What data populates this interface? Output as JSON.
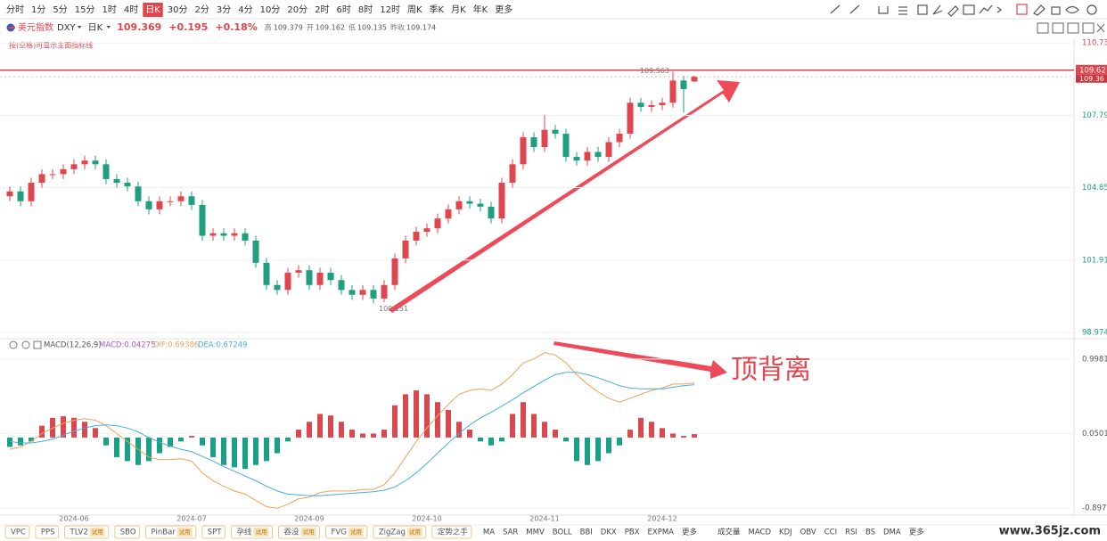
{
  "toolbar": {
    "periods": [
      "分时",
      "1分",
      "5分",
      "15分",
      "1时",
      "4时",
      "日K",
      "30分",
      "2分",
      "3分",
      "4分",
      "10分",
      "20分",
      "2时",
      "6时",
      "8时",
      "12时",
      "周K",
      "季K",
      "月K",
      "年K",
      "更多"
    ],
    "active": 6
  },
  "header": {
    "symbol": "美元指数",
    "code": "DXY",
    "period": "日K",
    "change": "+0.195",
    "change_pct": "+0.18%",
    "stat_labels": [
      "高",
      "开",
      "低",
      "昨收"
    ],
    "prev_close": 109.174,
    "hint": "按(空格)可显示主图指标线"
  },
  "chart_data": [
    {
      "type": "candlestick",
      "up_color": "#e0464d",
      "down_color": "#1f9f7d",
      "open": [
        104.5,
        104.7,
        104.3,
        105.05,
        105.4,
        105.4,
        105.6,
        105.8,
        105.95,
        105.8,
        105.2,
        105.05,
        104.9,
        104.3,
        103.97,
        104.3,
        104.3,
        104.5,
        104.15,
        102.9,
        103.0,
        102.9,
        103.0,
        102.7,
        101.8,
        100.9,
        100.7,
        101.4,
        101.5,
        100.9,
        101.4,
        101.1,
        100.7,
        100.5,
        100.7,
        100.35,
        100.9,
        101.98,
        102.7,
        103.06,
        103.2,
        103.6,
        103.97,
        104.3,
        104.2,
        104.08,
        103.6,
        105.05,
        105.8,
        106.9,
        106.5,
        107.2,
        107.04,
        106.1,
        105.95,
        106.3,
        106.1,
        106.7,
        107.04,
        108.3,
        108.13,
        108.2,
        108.3,
        109.2,
        109.162
      ],
      "high": [
        104.9,
        104.9,
        105.25,
        105.6,
        105.6,
        105.8,
        106.0,
        106.15,
        106.15,
        106.0,
        105.4,
        105.25,
        105.1,
        104.5,
        104.5,
        104.5,
        104.7,
        104.7,
        104.35,
        103.2,
        103.2,
        103.2,
        103.2,
        102.9,
        102.0,
        101.1,
        101.6,
        101.7,
        101.7,
        101.6,
        101.6,
        101.3,
        100.9,
        100.9,
        100.9,
        101.1,
        102.18,
        102.9,
        103.26,
        103.4,
        103.8,
        104.17,
        104.5,
        104.5,
        104.4,
        104.28,
        105.25,
        106.0,
        107.1,
        107.1,
        107.8,
        107.4,
        107.24,
        106.3,
        106.5,
        106.5,
        106.9,
        107.24,
        108.5,
        108.5,
        108.4,
        108.5,
        109.563,
        109.4,
        109.379
      ],
      "low": [
        104.3,
        104.1,
        104.1,
        104.85,
        105.2,
        105.2,
        105.4,
        105.6,
        105.6,
        105.0,
        104.85,
        104.7,
        104.1,
        103.77,
        103.77,
        104.1,
        104.1,
        103.95,
        102.7,
        102.7,
        102.7,
        102.7,
        102.5,
        101.6,
        100.7,
        100.5,
        100.5,
        101.2,
        100.7,
        100.7,
        100.9,
        100.5,
        100.3,
        100.3,
        100.151,
        100.2,
        100.7,
        101.78,
        102.5,
        102.86,
        103.0,
        103.4,
        103.77,
        104.0,
        103.88,
        103.4,
        103.4,
        104.85,
        105.6,
        106.3,
        106.3,
        106.84,
        105.9,
        105.75,
        105.75,
        105.9,
        105.9,
        106.5,
        106.84,
        107.93,
        107.93,
        108.0,
        108.1,
        107.9,
        109.135
      ],
      "close": [
        104.7,
        104.3,
        105.05,
        105.4,
        105.4,
        105.6,
        105.8,
        105.95,
        105.8,
        105.2,
        105.05,
        104.9,
        104.3,
        103.97,
        104.3,
        104.3,
        104.5,
        104.15,
        102.9,
        103.0,
        102.9,
        103.0,
        102.7,
        101.8,
        100.9,
        100.7,
        101.4,
        101.5,
        100.9,
        101.4,
        101.1,
        100.7,
        100.5,
        100.7,
        100.35,
        100.9,
        101.98,
        102.7,
        103.06,
        103.2,
        103.6,
        103.97,
        104.3,
        104.2,
        104.08,
        103.6,
        105.05,
        105.8,
        106.9,
        106.5,
        107.2,
        107.04,
        106.1,
        105.95,
        106.3,
        106.1,
        106.7,
        107.04,
        108.3,
        108.13,
        108.2,
        108.3,
        109.2,
        108.85,
        109.369
      ],
      "max_index": 62,
      "min_index": 34,
      "ylim": [
        98.72,
        110.95
      ],
      "yticks": [
        110.73,
        107.79,
        104.85,
        101.91,
        98.974
      ],
      "grid": true,
      "hline": {
        "value": 109.62,
        "color": "#e0464d"
      },
      "last_price": 109.36
    },
    {
      "type": "macd",
      "title": "MACD(12,26,9)",
      "legend_labels": [
        "MACD:0.04275",
        "DIF:0.69386",
        "DEA:0.67249"
      ],
      "categories": [
        null,
        null,
        null,
        null,
        null,
        null,
        "2024-06",
        null,
        null,
        null,
        null,
        null,
        null,
        null,
        null,
        null,
        null,
        "2024-07",
        null,
        null,
        null,
        null,
        null,
        null,
        null,
        null,
        null,
        null,
        "2024-09",
        null,
        null,
        null,
        null,
        null,
        null,
        null,
        null,
        null,
        null,
        "2024-10",
        null,
        null,
        null,
        null,
        null,
        null,
        null,
        null,
        null,
        null,
        "2024-11",
        null,
        null,
        null,
        null,
        null,
        null,
        null,
        null,
        null,
        null,
        "2024-12",
        null,
        null,
        null
      ],
      "series": [
        {
          "name": "MACD",
          "color": "#9b59c6",
          "up_color": "#d9474f",
          "down_color": "#1aa086",
          "values": [
            -0.12,
            -0.1,
            -0.05,
            0.15,
            0.25,
            0.27,
            0.25,
            0.2,
            0.12,
            -0.1,
            -0.25,
            -0.3,
            -0.35,
            -0.3,
            -0.2,
            -0.12,
            -0.05,
            0.02,
            -0.1,
            -0.25,
            -0.35,
            -0.38,
            -0.4,
            -0.35,
            -0.3,
            -0.2,
            -0.05,
            0.1,
            0.2,
            0.3,
            0.28,
            0.2,
            0.1,
            0.05,
            0.05,
            0.1,
            0.41,
            0.55,
            0.6,
            0.55,
            0.45,
            0.35,
            0.2,
            0.1,
            -0.05,
            -0.1,
            -0.05,
            0.3,
            0.45,
            0.3,
            0.2,
            0.1,
            -0.05,
            -0.3,
            -0.35,
            -0.3,
            -0.2,
            -0.1,
            0.1,
            0.25,
            0.2,
            0.12,
            0.05,
            0.02,
            0.04275
          ]
        },
        {
          "name": "DIF",
          "color": "#f0a25a",
          "values": [
            -0.15,
            -0.12,
            -0.05,
            0.05,
            0.12,
            0.18,
            0.22,
            0.24,
            0.22,
            0.15,
            0.05,
            -0.05,
            -0.15,
            -0.25,
            -0.28,
            -0.28,
            -0.27,
            -0.3,
            -0.45,
            -0.55,
            -0.62,
            -0.68,
            -0.72,
            -0.8,
            -0.88,
            -0.9,
            -0.85,
            -0.78,
            -0.76,
            -0.7,
            -0.68,
            -0.68,
            -0.68,
            -0.66,
            -0.66,
            -0.6,
            -0.45,
            -0.25,
            -0.05,
            0.12,
            0.28,
            0.42,
            0.55,
            0.6,
            0.62,
            0.6,
            0.68,
            0.8,
            0.95,
            1.0,
            1.08,
            1.05,
            0.95,
            0.8,
            0.68,
            0.58,
            0.5,
            0.45,
            0.5,
            0.55,
            0.6,
            0.63,
            0.68,
            0.68,
            0.69386
          ]
        },
        {
          "name": "DEA",
          "color": "#45aee0",
          "values": [
            -0.05,
            -0.07,
            -0.07,
            -0.05,
            -0.02,
            0.03,
            0.08,
            0.12,
            0.15,
            0.16,
            0.15,
            0.12,
            0.07,
            0.0,
            -0.06,
            -0.11,
            -0.15,
            -0.18,
            -0.24,
            -0.3,
            -0.37,
            -0.43,
            -0.49,
            -0.55,
            -0.62,
            -0.68,
            -0.72,
            -0.73,
            -0.74,
            -0.74,
            -0.73,
            -0.72,
            -0.71,
            -0.7,
            -0.69,
            -0.67,
            -0.63,
            -0.55,
            -0.45,
            -0.33,
            -0.2,
            -0.07,
            0.05,
            0.16,
            0.25,
            0.32,
            0.4,
            0.48,
            0.57,
            0.65,
            0.73,
            0.8,
            0.83,
            0.83,
            0.8,
            0.76,
            0.71,
            0.66,
            0.63,
            0.62,
            0.62,
            0.62,
            0.64,
            0.66,
            0.67249
          ]
        }
      ],
      "ylim": [
        -0.988,
        1.235
      ],
      "yticks": [
        0.9981,
        0.0501,
        -0.8977
      ],
      "grid": true
    }
  ],
  "annotation": "顶背离",
  "footer": {
    "indicators_main": [
      {
        "label": "VPC"
      },
      {
        "label": "PPS"
      },
      {
        "label": "TLV2",
        "badge": "试用"
      },
      {
        "label": "SBO"
      },
      {
        "label": "PinBar",
        "badge": "试用"
      },
      {
        "label": "SPT"
      },
      {
        "label": "孕线",
        "badge": "试用"
      },
      {
        "label": "吞没",
        "badge": "试用"
      },
      {
        "label": "FVG",
        "badge": "试用"
      },
      {
        "label": "ZigZag",
        "badge": "试用"
      },
      {
        "label": "定势之手"
      }
    ],
    "indicators_overlay": [
      "MA",
      "SAR",
      "MMV",
      "BOLL",
      "BBI",
      "DKX",
      "PBX",
      "EXPMA",
      "更多"
    ],
    "indicators_sub": [
      "成交量",
      "MACD",
      "KDJ",
      "OBV",
      "CCI",
      "RSI",
      "BS",
      "DMA",
      "更多"
    ]
  },
  "watermark": "www.365jz.com"
}
